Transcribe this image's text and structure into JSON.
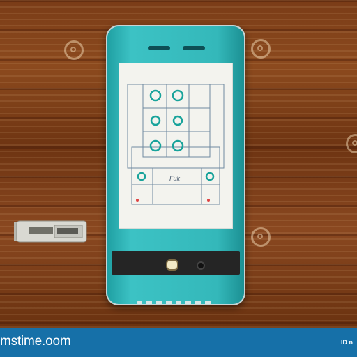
{
  "footer": {
    "brand": "mstime.oom",
    "image_id": "ID n"
  },
  "screen": {
    "sketch_label": "Fuk"
  },
  "icons": [
    "watermark-icon",
    "phone-speaker-icon",
    "camera-flash-icon",
    "camera-lens-icon",
    "usb-connector-icon"
  ],
  "colors": {
    "phone_body": "#34b8ba",
    "wood": "#7a3c17",
    "footer_bar": "#1670a8"
  }
}
